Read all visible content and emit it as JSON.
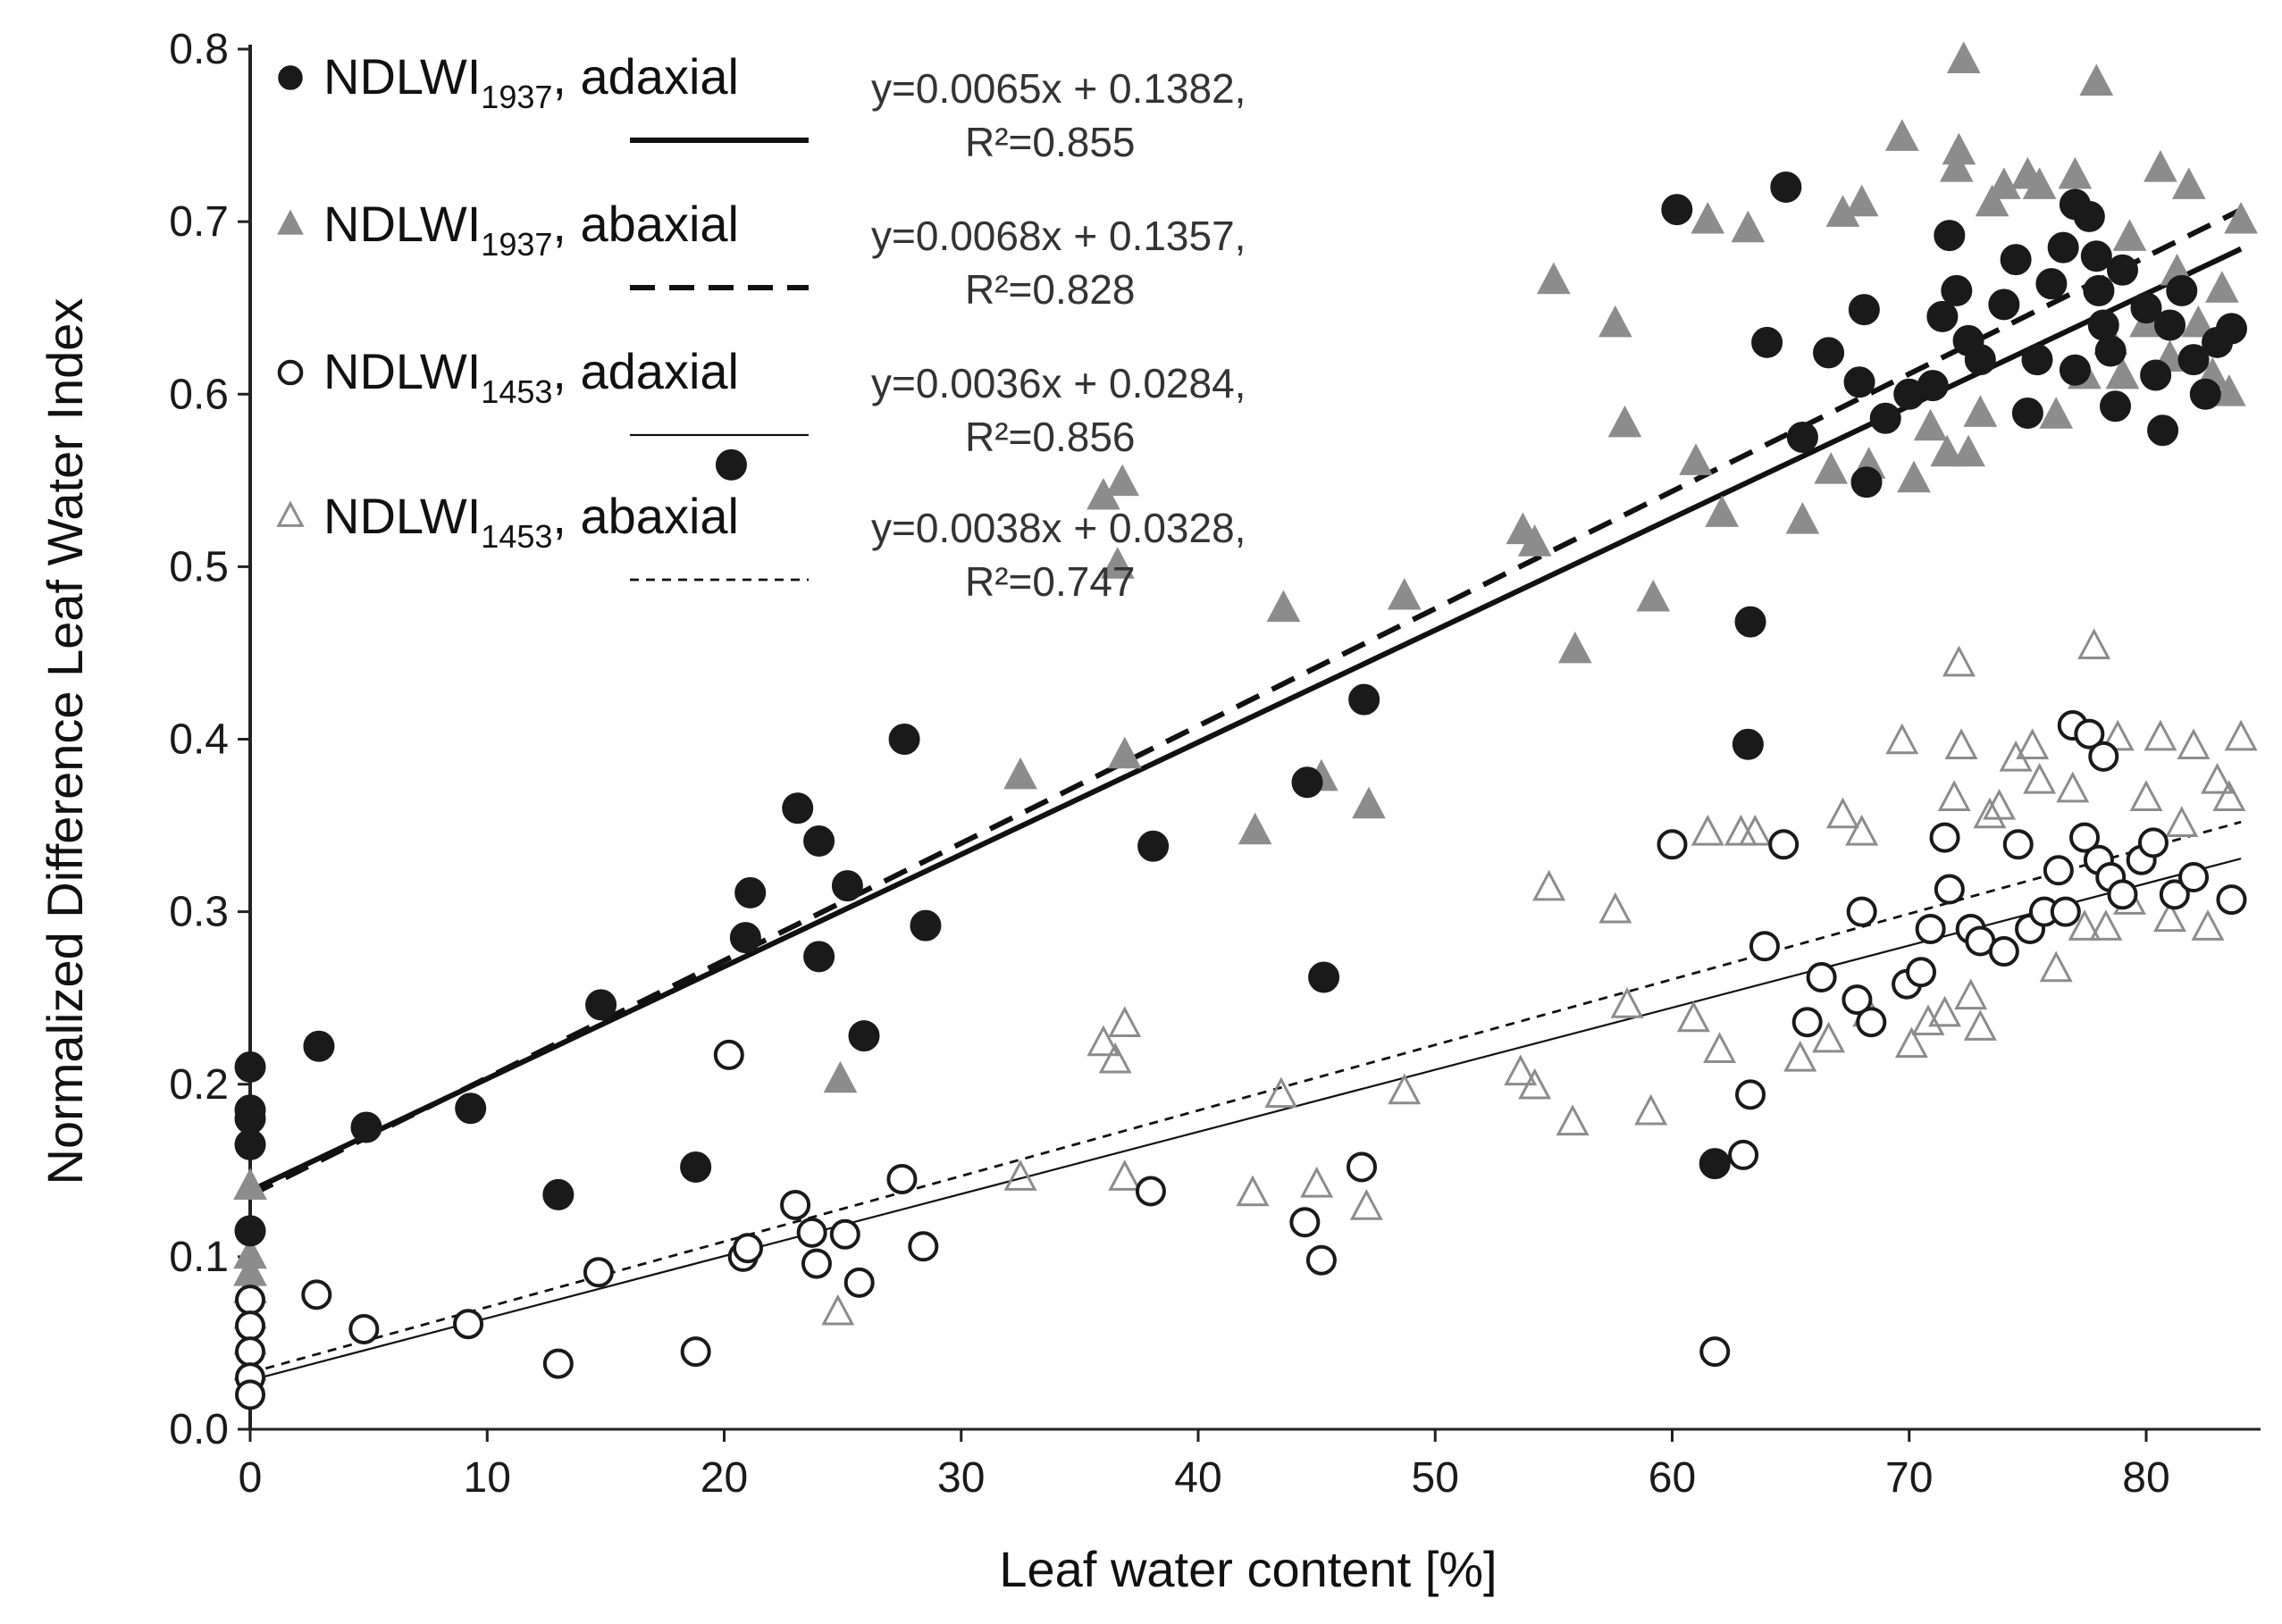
{
  "chart_data": {
    "type": "scatter",
    "title": "",
    "xlabel": "Leaf water content  [%]",
    "ylabel": "Normalized  Difference Leaf Water Index",
    "xlim": [
      0,
      85
    ],
    "ylim": [
      0.0,
      0.8
    ],
    "xticks": [
      "0",
      "10",
      "20",
      "30",
      "40",
      "50",
      "60",
      "70",
      "80"
    ],
    "yticks": [
      "0.0",
      "0.1",
      "0.2",
      "0.3",
      "0.4",
      "0.5",
      "0.6",
      "0.7",
      "0.8"
    ],
    "grid": false,
    "legend_position": "top-left",
    "colors": {
      "black": "#1a1a1a",
      "gray": "#8c8c8c",
      "axis": "#222222"
    },
    "series": [
      {
        "name": "NDLWI",
        "subscript": "1937",
        "suffix": ", adaxial",
        "marker": "filled-circle",
        "color": "#1a1a1a",
        "equation": "y=0.0065x + 0.1382,",
        "r2": "R²=0.855",
        "fit": {
          "slope": 0.0065,
          "intercept": 0.1382,
          "style": "thick-solid"
        },
        "points": [
          [
            0,
            0.21
          ],
          [
            0,
            0.185
          ],
          [
            0,
            0.18
          ],
          [
            0,
            0.165
          ],
          [
            0,
            0.115
          ],
          [
            2.9,
            0.222
          ],
          [
            4.9,
            0.175
          ],
          [
            9.3,
            0.186
          ],
          [
            13,
            0.136
          ],
          [
            14.8,
            0.246
          ],
          [
            18.8,
            0.152
          ],
          [
            20.3,
            0.559
          ],
          [
            20.9,
            0.285
          ],
          [
            21.1,
            0.311
          ],
          [
            23.1,
            0.36
          ],
          [
            24,
            0.341
          ],
          [
            24,
            0.274
          ],
          [
            25.2,
            0.315
          ],
          [
            25.9,
            0.228
          ],
          [
            27.6,
            0.4
          ],
          [
            28.5,
            0.292
          ],
          [
            38.1,
            0.338
          ],
          [
            44.6,
            0.375
          ],
          [
            45.3,
            0.262
          ],
          [
            47,
            0.423
          ],
          [
            60.2,
            0.707
          ],
          [
            61.8,
            0.154
          ],
          [
            63.2,
            0.397
          ],
          [
            63.3,
            0.468
          ],
          [
            64,
            0.63
          ],
          [
            64.8,
            0.72
          ],
          [
            65.5,
            0.575
          ],
          [
            66.6,
            0.624
          ],
          [
            67.9,
            0.607
          ],
          [
            68.1,
            0.649
          ],
          [
            68.2,
            0.549
          ],
          [
            69,
            0.586
          ],
          [
            70,
            0.6
          ],
          [
            71,
            0.605
          ],
          [
            71.4,
            0.645
          ],
          [
            71.7,
            0.692
          ],
          [
            72,
            0.66
          ],
          [
            72.5,
            0.631
          ],
          [
            73,
            0.62
          ],
          [
            74,
            0.652
          ],
          [
            74.5,
            0.678
          ],
          [
            75,
            0.589
          ],
          [
            75.4,
            0.62
          ],
          [
            76,
            0.664
          ],
          [
            76.5,
            0.685
          ],
          [
            77,
            0.614
          ],
          [
            77,
            0.71
          ],
          [
            77.6,
            0.703
          ],
          [
            77.9,
            0.68
          ],
          [
            78,
            0.66
          ],
          [
            78.2,
            0.64
          ],
          [
            78.5,
            0.625
          ],
          [
            78.7,
            0.593
          ],
          [
            79,
            0.672
          ],
          [
            80,
            0.65
          ],
          [
            80.4,
            0.611
          ],
          [
            80.7,
            0.579
          ],
          [
            81,
            0.64
          ],
          [
            81.5,
            0.66
          ],
          [
            82,
            0.62
          ],
          [
            82.5,
            0.6
          ],
          [
            83,
            0.63
          ],
          [
            83.6,
            0.638
          ]
        ]
      },
      {
        "name": "NDLWI",
        "subscript": "1937",
        "suffix": ", abaxial",
        "marker": "filled-triangle",
        "color": "#8c8c8c",
        "equation": "y=0.0068x + 0.1357,",
        "r2": "R²=0.828",
        "fit": {
          "slope": 0.0068,
          "intercept": 0.1357,
          "style": "thick-dashed"
        },
        "points": [
          [
            0,
            0.14
          ],
          [
            0,
            0.1
          ],
          [
            0,
            0.09
          ],
          [
            0,
            0.08
          ],
          [
            24.9,
            0.202
          ],
          [
            32.5,
            0.378
          ],
          [
            36,
            0.54
          ],
          [
            36.6,
            0.5
          ],
          [
            36.8,
            0.548
          ],
          [
            36.9,
            0.39
          ],
          [
            42.4,
            0.346
          ],
          [
            43.6,
            0.475
          ],
          [
            45.2,
            0.377
          ],
          [
            47.2,
            0.361
          ],
          [
            48.7,
            0.482
          ],
          [
            53.7,
            0.52
          ],
          [
            54.2,
            0.513
          ],
          [
            55,
            0.665
          ],
          [
            55.9,
            0.451
          ],
          [
            57.6,
            0.64
          ],
          [
            58,
            0.582
          ],
          [
            59.2,
            0.481
          ],
          [
            61,
            0.56
          ],
          [
            61.5,
            0.7
          ],
          [
            62.1,
            0.53
          ],
          [
            63.2,
            0.695
          ],
          [
            65.5,
            0.526
          ],
          [
            66.7,
            0.555
          ],
          [
            67.2,
            0.704
          ],
          [
            68,
            0.71
          ],
          [
            68.3,
            0.558
          ],
          [
            69.7,
            0.748
          ],
          [
            70.2,
            0.55
          ],
          [
            70.9,
            0.58
          ],
          [
            71.6,
            0.565
          ],
          [
            72,
            0.73
          ],
          [
            72.1,
            0.74
          ],
          [
            72.3,
            0.793
          ],
          [
            72.5,
            0.565
          ],
          [
            73,
            0.588
          ],
          [
            73.5,
            0.71
          ],
          [
            74,
            0.72
          ],
          [
            75,
            0.726
          ],
          [
            75.5,
            0.72
          ],
          [
            76.2,
            0.587
          ],
          [
            77,
            0.726
          ],
          [
            77.4,
            0.61
          ],
          [
            77.9,
            0.78
          ],
          [
            78.5,
            0.63
          ],
          [
            79,
            0.61
          ],
          [
            79.3,
            0.69
          ],
          [
            80,
            0.64
          ],
          [
            80.6,
            0.73
          ],
          [
            81,
            0.62
          ],
          [
            81.3,
            0.67
          ],
          [
            81.8,
            0.72
          ],
          [
            82.2,
            0.64
          ],
          [
            82.8,
            0.61
          ],
          [
            83.2,
            0.66
          ],
          [
            83.5,
            0.6
          ],
          [
            84,
            0.7
          ]
        ]
      },
      {
        "name": "NDLWI",
        "subscript": "1453",
        "suffix": ", adaxial",
        "marker": "open-circle",
        "color": "#1a1a1a",
        "equation": "y=0.0036x + 0.0284,",
        "r2": "R²=0.856",
        "fit": {
          "slope": 0.0036,
          "intercept": 0.0284,
          "style": "thin-solid"
        },
        "points": [
          [
            0,
            0.075
          ],
          [
            0,
            0.06
          ],
          [
            0,
            0.045
          ],
          [
            0,
            0.03
          ],
          [
            0,
            0.02
          ],
          [
            2.8,
            0.078
          ],
          [
            4.8,
            0.058
          ],
          [
            9.2,
            0.061
          ],
          [
            13,
            0.038
          ],
          [
            14.7,
            0.091
          ],
          [
            18.8,
            0.045
          ],
          [
            20.2,
            0.217
          ],
          [
            20.8,
            0.1
          ],
          [
            21,
            0.105
          ],
          [
            23,
            0.13
          ],
          [
            23.7,
            0.114
          ],
          [
            23.9,
            0.096
          ],
          [
            25.1,
            0.113
          ],
          [
            25.7,
            0.085
          ],
          [
            27.5,
            0.145
          ],
          [
            28.4,
            0.106
          ],
          [
            38,
            0.138
          ],
          [
            44.5,
            0.12
          ],
          [
            45.2,
            0.098
          ],
          [
            46.9,
            0.152
          ],
          [
            60,
            0.339
          ],
          [
            61.8,
            0.045
          ],
          [
            63,
            0.159
          ],
          [
            63.3,
            0.194
          ],
          [
            63.9,
            0.28
          ],
          [
            64.7,
            0.339
          ],
          [
            65.7,
            0.236
          ],
          [
            66.3,
            0.262
          ],
          [
            67.8,
            0.249
          ],
          [
            68,
            0.3
          ],
          [
            68.4,
            0.236
          ],
          [
            69.9,
            0.258
          ],
          [
            70.5,
            0.265
          ],
          [
            70.9,
            0.29
          ],
          [
            71.5,
            0.343
          ],
          [
            71.7,
            0.313
          ],
          [
            72.6,
            0.29
          ],
          [
            73,
            0.283
          ],
          [
            74,
            0.277
          ],
          [
            74.6,
            0.339
          ],
          [
            75.1,
            0.29
          ],
          [
            75.7,
            0.3
          ],
          [
            76.3,
            0.324
          ],
          [
            76.6,
            0.3
          ],
          [
            76.9,
            0.408
          ],
          [
            77.4,
            0.343
          ],
          [
            77.6,
            0.403
          ],
          [
            78,
            0.33
          ],
          [
            78.2,
            0.39
          ],
          [
            78.5,
            0.32
          ],
          [
            79,
            0.31
          ],
          [
            79.8,
            0.33
          ],
          [
            80.3,
            0.34
          ],
          [
            81.2,
            0.31
          ],
          [
            82,
            0.32
          ],
          [
            83.6,
            0.307
          ]
        ]
      },
      {
        "name": "NDLWI",
        "subscript": "1453",
        "suffix": ", abaxial",
        "marker": "open-triangle",
        "color": "#8c8c8c",
        "equation": "y=0.0038x + 0.0328,",
        "r2": "R²=0.747",
        "fit": {
          "slope": 0.0038,
          "intercept": 0.0328,
          "style": "thin-dashed"
        },
        "points": [
          [
            0,
            0.08
          ],
          [
            0,
            0.065
          ],
          [
            0,
            0.05
          ],
          [
            0,
            0.035
          ],
          [
            24.8,
            0.067
          ],
          [
            32.5,
            0.145
          ],
          [
            36,
            0.223
          ],
          [
            36.5,
            0.213
          ],
          [
            36.9,
            0.234
          ],
          [
            36.9,
            0.145
          ],
          [
            42.3,
            0.136
          ],
          [
            43.5,
            0.193
          ],
          [
            45,
            0.141
          ],
          [
            47.1,
            0.128
          ],
          [
            48.7,
            0.195
          ],
          [
            53.6,
            0.206
          ],
          [
            54.2,
            0.198
          ],
          [
            54.8,
            0.313
          ],
          [
            55.8,
            0.177
          ],
          [
            57.6,
            0.3
          ],
          [
            58.1,
            0.245
          ],
          [
            59.1,
            0.183
          ],
          [
            60.9,
            0.237
          ],
          [
            61.5,
            0.345
          ],
          [
            62,
            0.219
          ],
          [
            62.9,
            0.345
          ],
          [
            63.5,
            0.345
          ],
          [
            65.4,
            0.214
          ],
          [
            66.6,
            0.225
          ],
          [
            67.2,
            0.355
          ],
          [
            68,
            0.345
          ],
          [
            68.3,
            0.24
          ],
          [
            69.7,
            0.398
          ],
          [
            70.1,
            0.222
          ],
          [
            70.8,
            0.235
          ],
          [
            71.5,
            0.24
          ],
          [
            71.9,
            0.365
          ],
          [
            72.1,
            0.443
          ],
          [
            72.2,
            0.395
          ],
          [
            72.6,
            0.25
          ],
          [
            73,
            0.232
          ],
          [
            73.4,
            0.355
          ],
          [
            73.8,
            0.36
          ],
          [
            74.5,
            0.388
          ],
          [
            75.2,
            0.395
          ],
          [
            75.5,
            0.375
          ],
          [
            76.2,
            0.266
          ],
          [
            76.9,
            0.37
          ],
          [
            77.4,
            0.29
          ],
          [
            77.8,
            0.453
          ],
          [
            78.3,
            0.29
          ],
          [
            78.8,
            0.4
          ],
          [
            79.3,
            0.305
          ],
          [
            80,
            0.365
          ],
          [
            80.6,
            0.4
          ],
          [
            81,
            0.295
          ],
          [
            81.5,
            0.35
          ],
          [
            82,
            0.395
          ],
          [
            82.6,
            0.29
          ],
          [
            83,
            0.375
          ],
          [
            83.5,
            0.365
          ],
          [
            84,
            0.4
          ]
        ]
      }
    ]
  }
}
